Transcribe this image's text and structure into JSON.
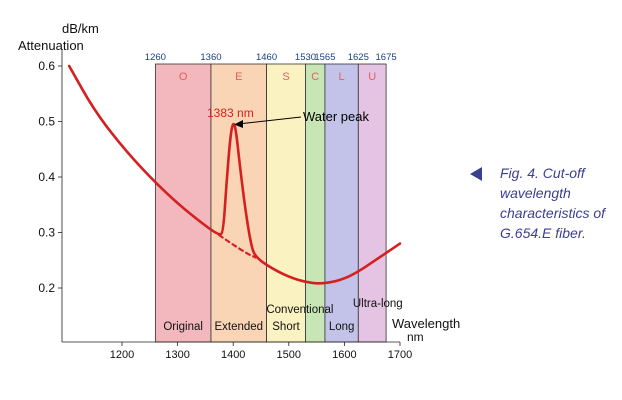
{
  "chart_data": {
    "type": "line",
    "title": "",
    "ylabel_unit": "dB/km",
    "ylabel": "Attenuation",
    "xlabel": "Wavelength",
    "xlabel_unit": "nm",
    "xlim": [
      1100,
      1710
    ],
    "ylim": [
      0.12,
      0.63
    ],
    "x_ticks": [
      1200,
      1300,
      1400,
      1500,
      1600,
      1700
    ],
    "y_ticks": [
      0.2,
      0.3,
      0.4,
      0.5,
      0.6
    ],
    "y_tick_labels": [
      "0.2",
      "0.3",
      "0.4",
      "0.5",
      "0.6"
    ],
    "bands": [
      {
        "letter": "O",
        "name": "Original",
        "start": 1260,
        "end": 1360,
        "start_label": "1260",
        "color": "#f3b8bd"
      },
      {
        "letter": "E",
        "name": "Extended",
        "start": 1360,
        "end": 1460,
        "start_label": "1360",
        "color": "#f9d5b5"
      },
      {
        "letter": "S",
        "name": "Short",
        "start": 1460,
        "end": 1530,
        "start_label": "1460",
        "color": "#fbf2c2"
      },
      {
        "letter": "C",
        "name": "Conventional",
        "start": 1530,
        "end": 1565,
        "start_label": "1530",
        "color": "#c8e5b5"
      },
      {
        "letter": "L",
        "name": "Long",
        "start": 1565,
        "end": 1625,
        "start_label": "1565",
        "color": "#c3c3ea"
      },
      {
        "letter": "U",
        "name": "Ultra-long",
        "start": 1625,
        "end": 1675,
        "start_label": "1625",
        "color": "#e5c3e3"
      }
    ],
    "band_end_label": "1675",
    "series": [
      {
        "color": "#d42020",
        "points": [
          [
            1105,
            0.6
          ],
          [
            1150,
            0.52
          ],
          [
            1200,
            0.455
          ],
          [
            1250,
            0.4
          ],
          [
            1300,
            0.352
          ],
          [
            1350,
            0.312
          ],
          [
            1375,
            0.295
          ],
          [
            1382,
            0.3
          ],
          [
            1388,
            0.39
          ],
          [
            1395,
            0.475
          ],
          [
            1400,
            0.5
          ],
          [
            1405,
            0.485
          ],
          [
            1412,
            0.42
          ],
          [
            1422,
            0.34
          ],
          [
            1432,
            0.278
          ],
          [
            1440,
            0.255
          ],
          [
            1475,
            0.232
          ],
          [
            1510,
            0.216
          ],
          [
            1540,
            0.209
          ],
          [
            1560,
            0.208
          ],
          [
            1590,
            0.213
          ],
          [
            1620,
            0.226
          ],
          [
            1660,
            0.253
          ],
          [
            1700,
            0.28
          ]
        ]
      },
      {
        "style": "dashed",
        "color": "#d42020",
        "points": [
          [
            1375,
            0.295
          ],
          [
            1400,
            0.278
          ],
          [
            1425,
            0.262
          ],
          [
            1440,
            0.255
          ]
        ]
      }
    ],
    "annotations": [
      {
        "text": "1383 nm",
        "color": "#d42020"
      },
      {
        "text": "Water peak",
        "color": "#000000",
        "points_to": [
          1400,
          0.5
        ]
      }
    ]
  },
  "caption": "Fig. 4. Cut-off wavelength characteristics of G.654.E fiber."
}
